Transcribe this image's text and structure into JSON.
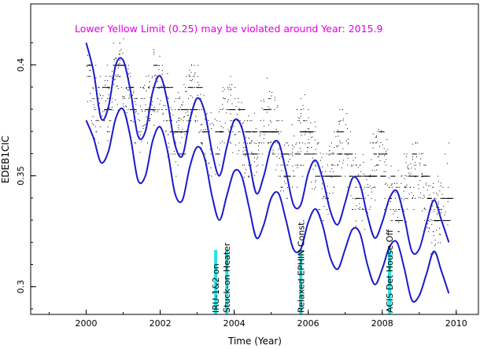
{
  "chart_data": {
    "type": "scatter",
    "title": "",
    "annotation": "Lower Yellow  Limit (0.25) may be violated around Year: 2015.9",
    "xlabel": "Time (Year)",
    "ylabel": "EDEB1CIC",
    "xlim": [
      1998.5,
      2010.6
    ],
    "ylim": [
      0.2875,
      0.4275
    ],
    "x_ticks": [
      {
        "value": 2000,
        "label": "2000"
      },
      {
        "value": 2002,
        "label": "2002"
      },
      {
        "value": 2004,
        "label": "2004"
      },
      {
        "value": 2006,
        "label": "2006"
      },
      {
        "value": 2008,
        "label": "2008"
      },
      {
        "value": 2010,
        "label": "2010"
      }
    ],
    "y_ticks": [
      {
        "value": 0.3,
        "label": "0.3"
      },
      {
        "value": 0.35,
        "label": "0.35"
      },
      {
        "value": 0.4,
        "label": "0.4"
      }
    ],
    "grid": false,
    "series": [
      {
        "role": "data-points",
        "color": "#000000",
        "baseline_trend": {
          "x0": 2000.0,
          "y0": 0.392,
          "slope": -0.0054
        },
        "seasonal_amplitude": 0.01,
        "period_years": 1.0,
        "x_start": 2000.0,
        "x_end": 2009.8
      },
      {
        "role": "upper-envelope",
        "color": "#1a1acd",
        "x": [
          2000.0,
          2000.2,
          2000.4,
          2000.6,
          2000.8,
          2001.0,
          2001.2,
          2001.4,
          2001.6,
          2001.8,
          2002.0,
          2002.2,
          2002.4,
          2002.6,
          2002.8,
          2003.0,
          2003.2,
          2003.4,
          2003.6,
          2003.8,
          2004.0,
          2004.2,
          2004.4,
          2004.6,
          2004.8,
          2005.0,
          2005.2,
          2005.4,
          2005.6,
          2005.8,
          2006.0,
          2006.2,
          2006.4,
          2006.6,
          2006.8,
          2007.0,
          2007.2,
          2007.4,
          2007.6,
          2007.8,
          2008.0,
          2008.2,
          2008.4,
          2008.6,
          2008.8,
          2009.0,
          2009.2,
          2009.4,
          2009.6,
          2009.8
        ],
        "values": [
          0.41,
          0.397,
          0.376,
          0.381,
          0.4,
          0.402,
          0.388,
          0.368,
          0.37,
          0.388,
          0.395,
          0.383,
          0.364,
          0.359,
          0.375,
          0.385,
          0.379,
          0.361,
          0.35,
          0.363,
          0.375,
          0.372,
          0.357,
          0.342,
          0.35,
          0.363,
          0.365,
          0.352,
          0.337,
          0.337,
          0.351,
          0.357,
          0.348,
          0.334,
          0.328,
          0.338,
          0.349,
          0.346,
          0.332,
          0.322,
          0.329,
          0.34,
          0.343,
          0.331,
          0.316,
          0.317,
          0.329,
          0.339,
          0.33,
          0.32
        ]
      },
      {
        "role": "lower-envelope",
        "color": "#1a1acd",
        "x": [
          2000.0,
          2000.2,
          2000.4,
          2000.6,
          2000.8,
          2001.0,
          2001.2,
          2001.4,
          2001.6,
          2001.8,
          2002.0,
          2002.2,
          2002.4,
          2002.6,
          2002.8,
          2003.0,
          2003.2,
          2003.4,
          2003.6,
          2003.8,
          2004.0,
          2004.2,
          2004.4,
          2004.6,
          2004.8,
          2005.0,
          2005.2,
          2005.4,
          2005.6,
          2005.8,
          2006.0,
          2006.2,
          2006.4,
          2006.6,
          2006.8,
          2007.0,
          2007.2,
          2007.4,
          2007.6,
          2007.8,
          2008.0,
          2008.2,
          2008.4,
          2008.6,
          2008.8,
          2009.0,
          2009.2,
          2009.4,
          2009.6,
          2009.8
        ],
        "values": [
          0.375,
          0.367,
          0.356,
          0.361,
          0.376,
          0.38,
          0.367,
          0.348,
          0.35,
          0.366,
          0.372,
          0.361,
          0.342,
          0.339,
          0.354,
          0.363,
          0.358,
          0.341,
          0.33,
          0.341,
          0.352,
          0.35,
          0.336,
          0.322,
          0.328,
          0.34,
          0.342,
          0.33,
          0.317,
          0.317,
          0.329,
          0.335,
          0.327,
          0.313,
          0.308,
          0.317,
          0.326,
          0.324,
          0.31,
          0.301,
          0.308,
          0.318,
          0.32,
          0.308,
          0.294,
          0.296,
          0.306,
          0.316,
          0.307,
          0.297
        ]
      }
    ],
    "events": [
      {
        "x": 2003.5,
        "label": "IRU-1&2 on"
      },
      {
        "x": 2003.8,
        "label": "Stuck-on Heater"
      },
      {
        "x": 2005.8,
        "label": "Relaxed EPHIN Const."
      },
      {
        "x": 2008.2,
        "label": "ACIS Det House Off"
      }
    ],
    "colors": {
      "annotation": "#e000e0",
      "envelope": "#1a1acd",
      "event_bar": "#00dddd",
      "points": "#000000",
      "axis": "#000000"
    }
  }
}
